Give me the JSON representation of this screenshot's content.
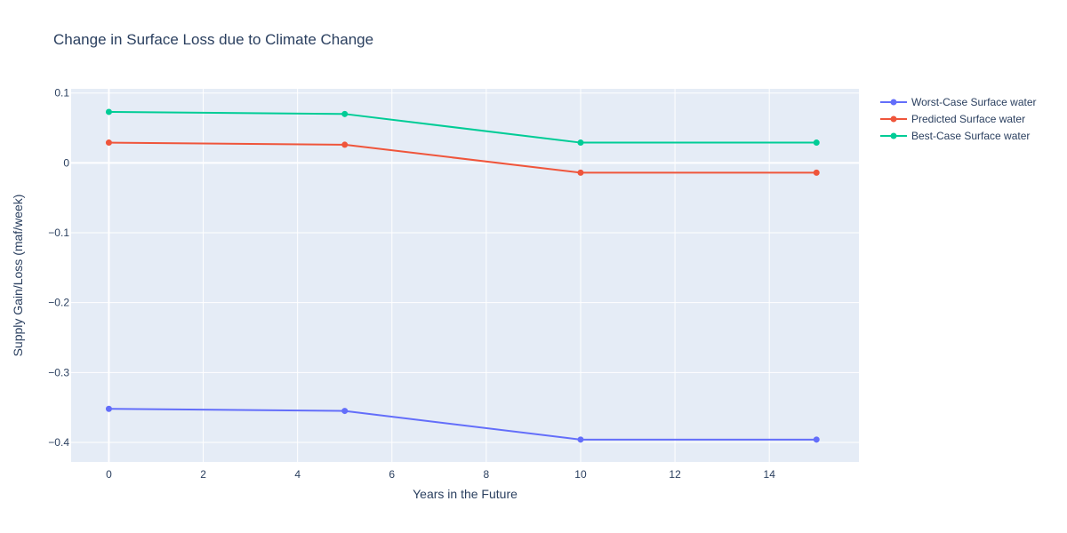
{
  "chart_data": {
    "type": "line",
    "title": "Change in Surface Loss due to Climate Change",
    "xlabel": "Years in the Future",
    "ylabel": "Supply Gain/Loss (maf/week)",
    "xlim": [
      -0.8,
      15.9
    ],
    "ylim": [
      -0.428,
      0.106
    ],
    "x_ticks": [
      0,
      2,
      4,
      6,
      8,
      10,
      12,
      14
    ],
    "x_tick_labels": [
      "0",
      "2",
      "4",
      "6",
      "8",
      "10",
      "12",
      "14"
    ],
    "y_ticks": [
      0.1,
      0,
      -0.1,
      -0.2,
      -0.3,
      -0.4
    ],
    "y_tick_labels": [
      "0.1",
      "0",
      "−0.1",
      "−0.2",
      "−0.3",
      "−0.4"
    ],
    "grid": true,
    "legend_position": "top-right, outside plot",
    "plot_background": "#e5ecf6",
    "series": [
      {
        "name": "Worst-Case Surface water",
        "color": "#636efa",
        "x": [
          0,
          5,
          10,
          15
        ],
        "y": [
          -0.352,
          -0.355,
          -0.396,
          -0.396
        ]
      },
      {
        "name": "Predicted Surface water",
        "color": "#ef553b",
        "x": [
          0,
          5,
          10,
          15
        ],
        "y": [
          0.029,
          0.026,
          -0.014,
          -0.014
        ]
      },
      {
        "name": "Best-Case Surface water",
        "color": "#00cc96",
        "x": [
          0,
          5,
          10,
          15
        ],
        "y": [
          0.073,
          0.07,
          0.029,
          0.029
        ]
      }
    ]
  }
}
